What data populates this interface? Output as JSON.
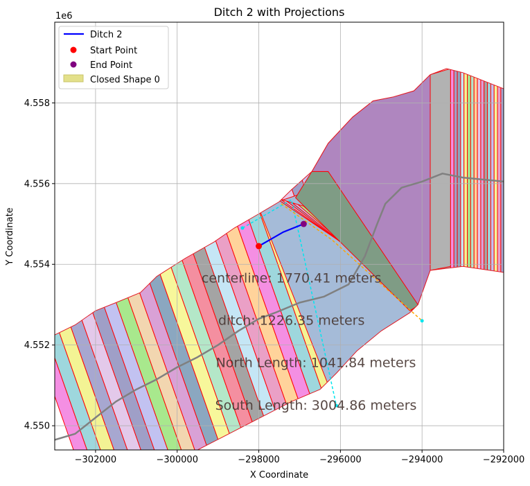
{
  "chart_data": {
    "type": "map",
    "title": "Ditch 2 with Projections",
    "xlabel": "X Coordinate",
    "ylabel": "Y Coordinate",
    "y_offset_label": "1e6",
    "xlim": [
      -303000,
      -292000
    ],
    "ylim": [
      4549400,
      4560000
    ],
    "x_ticks": [
      -302000,
      -300000,
      -298000,
      -296000,
      -294000,
      -292000
    ],
    "x_tick_labels": [
      "−302000",
      "−300000",
      "−298000",
      "−296000",
      "−294000",
      "−292000"
    ],
    "y_ticks": [
      4550000,
      4552000,
      4554000,
      4556000,
      4558000
    ],
    "y_tick_labels": [
      "4.550",
      "4.552",
      "4.554",
      "4.556",
      "4.558"
    ],
    "grid": true,
    "legend_position": "upper-left",
    "legend": [
      {
        "label": "Ditch 2",
        "marker": "line",
        "color": "#0000ff"
      },
      {
        "label": "Start Point",
        "marker": "dot",
        "color": "#ff0000"
      },
      {
        "label": "End Point",
        "marker": "dot",
        "color": "#800080"
      },
      {
        "label": "Closed Shape 0",
        "marker": "patch",
        "color": "#e3e08a"
      }
    ],
    "annotations": [
      {
        "text": "centerline: 1770.41 meters",
        "x": -297200,
        "y": 4553550
      },
      {
        "text": "ditch: 1226.35 meters",
        "x": -297200,
        "y": 4552500
      },
      {
        "text": "North Length: 1041.84 meters",
        "x": -296600,
        "y": 4551450
      },
      {
        "text": "South Length: 3004.86 meters",
        "x": -296600,
        "y": 4550400
      }
    ],
    "closed_shape": [
      [
        -303000,
        4552250
      ],
      [
        -302500,
        4552500
      ],
      [
        -302000,
        4552850
      ],
      [
        -301500,
        4553050
      ],
      [
        -300900,
        4553300
      ],
      [
        -300500,
        4553700
      ],
      [
        -299800,
        4554150
      ],
      [
        -299100,
        4554550
      ],
      [
        -298600,
        4554900
      ],
      [
        -298000,
        4555250
      ],
      [
        -297500,
        4555550
      ],
      [
        -297200,
        4555850
      ],
      [
        -296700,
        4556300
      ],
      [
        -296300,
        4557000
      ],
      [
        -295700,
        4557650
      ],
      [
        -295200,
        4558050
      ],
      [
        -294700,
        4558150
      ],
      [
        -294200,
        4558300
      ],
      [
        -293800,
        4558700
      ],
      [
        -293400,
        4558850
      ],
      [
        -293000,
        4558750
      ],
      [
        -292000,
        4558350
      ],
      [
        -292000,
        4553800
      ],
      [
        -293000,
        4553950
      ],
      [
        -293800,
        4553850
      ],
      [
        -294100,
        4553000
      ],
      [
        -294300,
        4552800
      ],
      [
        -295000,
        4552350
      ],
      [
        -295600,
        4551850
      ],
      [
        -296100,
        4551300
      ],
      [
        -296500,
        4550900
      ],
      [
        -297200,
        4550600
      ],
      [
        -299500,
        4549400
      ],
      [
        -303000,
        4549400
      ]
    ],
    "ditch_2": {
      "x": [
        -298000,
        -297400,
        -296900
      ],
      "y": [
        4554450,
        4554800,
        4555000
      ]
    },
    "start_point": {
      "x": -298000,
      "y": 4554450
    },
    "end_point": {
      "x": -296900,
      "y": 4555000
    },
    "centerline": {
      "x": [
        -303000,
        -302500,
        -302000,
        -301500,
        -301000,
        -300500,
        -300000,
        -299500,
        -299000,
        -298500,
        -298000,
        -297600,
        -297000,
        -296400,
        -295800,
        -295400,
        -295100,
        -294900,
        -294500,
        -294000,
        -293500,
        -293000,
        -292500,
        -292000
      ],
      "y": [
        4549650,
        4549800,
        4550200,
        4550600,
        4550900,
        4551150,
        4551450,
        4551700,
        4552000,
        4552350,
        4552650,
        4552800,
        4553050,
        4553200,
        4553500,
        4554200,
        4555000,
        4555500,
        4555900,
        4556050,
        4556250,
        4556150,
        4556100,
        4556050
      ]
    },
    "north_projection": {
      "x": [
        -298400,
        -297200,
        -296100
      ],
      "y": [
        4554900,
        4555600,
        4550500
      ]
    },
    "south_projection": {
      "x": [
        -297450,
        -296200,
        -294000
      ],
      "y": [
        4555500,
        4554600,
        4552600
      ]
    }
  }
}
